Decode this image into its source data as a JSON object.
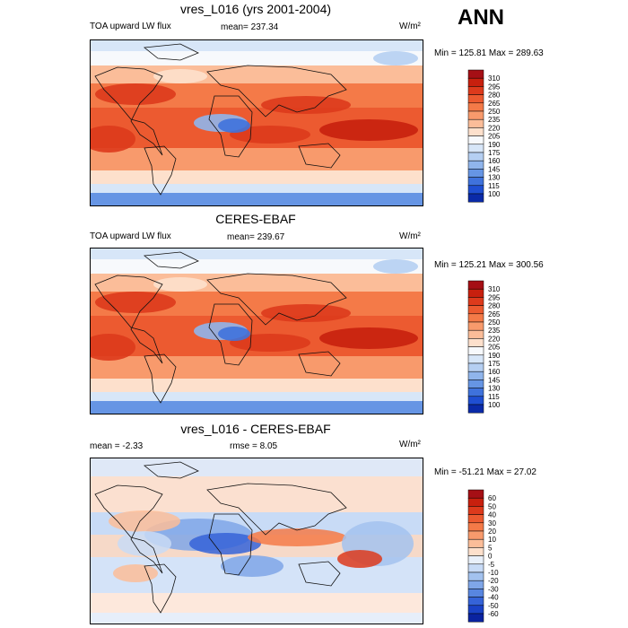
{
  "season": "ANN",
  "panels": [
    {
      "title": "vres_L016 (yrs 2001-2004)",
      "left_label": "TOA upward LW flux",
      "stat1": "mean= 237.34",
      "stat2": "",
      "units": "W/m²",
      "minmax": "Min = 125.81 Max = 289.63"
    },
    {
      "title": "CERES-EBAF",
      "left_label": "TOA upward LW flux",
      "stat1": "mean= 239.67",
      "stat2": "",
      "units": "W/m²",
      "minmax": "Min = 125.21 Max = 300.56"
    },
    {
      "title": "vres_L016 - CERES-EBAF",
      "left_label": "mean = -2.33",
      "stat1": "rmse = 8.05",
      "stat2": "",
      "units": "W/m²",
      "minmax": "Min = -51.21 Max = 27.02"
    }
  ],
  "chart_data": [
    {
      "type": "heatmap",
      "title": "vres_L016 (yrs 2001-2004)",
      "variable": "TOA upward LW flux",
      "units": "W/m²",
      "mean": 237.34,
      "min": 125.81,
      "max": 289.63,
      "colorbar": {
        "levels": [
          310,
          295,
          280,
          265,
          250,
          235,
          220,
          205,
          190,
          175,
          160,
          145,
          130,
          115,
          100
        ],
        "colors": [
          "#a50f15",
          "#c8200e",
          "#dd3a1c",
          "#ec5a30",
          "#f47a48",
          "#f89a6c",
          "#fbbd99",
          "#fde0cc",
          "#f7f9fc",
          "#d7e6f8",
          "#b5cff2",
          "#90b5ec",
          "#6695e4",
          "#3f72dc",
          "#1f4fd2",
          "#0a2aa8"
        ]
      }
    },
    {
      "type": "heatmap",
      "title": "CERES-EBAF",
      "variable": "TOA upward LW flux",
      "units": "W/m²",
      "mean": 239.67,
      "min": 125.21,
      "max": 300.56,
      "colorbar": {
        "levels": [
          310,
          295,
          280,
          265,
          250,
          235,
          220,
          205,
          190,
          175,
          160,
          145,
          130,
          115,
          100
        ],
        "colors": [
          "#a50f15",
          "#c8200e",
          "#dd3a1c",
          "#ec5a30",
          "#f47a48",
          "#f89a6c",
          "#fbbd99",
          "#fde0cc",
          "#f7f9fc",
          "#d7e6f8",
          "#b5cff2",
          "#90b5ec",
          "#6695e4",
          "#3f72dc",
          "#1f4fd2",
          "#0a2aa8"
        ]
      }
    },
    {
      "type": "heatmap",
      "title": "vres_L016 - CERES-EBAF",
      "units": "W/m²",
      "mean": -2.33,
      "rmse": 8.05,
      "min": -51.21,
      "max": 27.02,
      "colorbar": {
        "levels": [
          60,
          50,
          40,
          30,
          20,
          10,
          5,
          0,
          -5,
          -10,
          -20,
          -30,
          -40,
          -50,
          -60
        ],
        "colors": [
          "#a50f15",
          "#c8200e",
          "#dd3a1c",
          "#ec5a30",
          "#f47a48",
          "#f89a6c",
          "#fbbd99",
          "#fde0cc",
          "#e9f0fa",
          "#c8dbf6",
          "#a3c2ef",
          "#7fa6e8",
          "#5886e0",
          "#3563d8",
          "#1a42c6",
          "#0a23a0"
        ]
      }
    }
  ]
}
